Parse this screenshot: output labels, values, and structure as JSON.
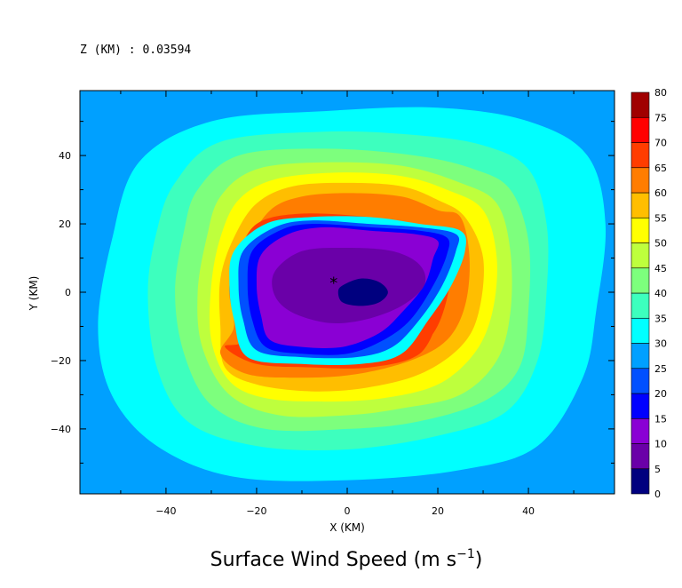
{
  "chart_data": {
    "type": "heatmap",
    "title": "Surface Wind Speed (m s",
    "title_superscript": "−1",
    "title_suffix": ")",
    "annotation": "Z (KM) : 0.03594",
    "xlabel": "X (KM)",
    "ylabel": "Y (KM)",
    "xlim": [
      -59,
      59
    ],
    "ylim": [
      -59,
      59
    ],
    "x_ticks": [
      -40,
      -20,
      0,
      20,
      40
    ],
    "y_ticks": [
      -40,
      -20,
      0,
      20,
      40
    ],
    "colorbar": {
      "levels": [
        0,
        5,
        10,
        15,
        20,
        25,
        30,
        35,
        40,
        45,
        50,
        55,
        60,
        65,
        70,
        75,
        80
      ],
      "colors": [
        "#00007f",
        "#6a00a8",
        "#8a00d4",
        "#0000ff",
        "#0050ff",
        "#00a0ff",
        "#00ffff",
        "#3dffbe",
        "#7dff7d",
        "#beff3d",
        "#ffff00",
        "#ffbe00",
        "#ff7d00",
        "#ff3d00",
        "#ff0000",
        "#a00000"
      ]
    },
    "center_marker": {
      "x": -3,
      "y": 3,
      "symbol": "*",
      "color": "#ff0000"
    },
    "contour_bands": [
      {
        "level": 25,
        "points": [
          [
            -59,
            40
          ],
          [
            -48,
            52
          ],
          [
            -30,
            56
          ],
          [
            0,
            57
          ],
          [
            30,
            56
          ],
          [
            48,
            52
          ],
          [
            59,
            43
          ],
          [
            59,
            -35
          ],
          [
            48,
            -50
          ],
          [
            30,
            -57
          ],
          [
            0,
            -58
          ],
          [
            -30,
            -57
          ],
          [
            -48,
            -50
          ],
          [
            -59,
            -35
          ]
        ]
      },
      {
        "level": 30,
        "points": [
          [
            -46,
            38
          ],
          [
            -30,
            50
          ],
          [
            -5,
            53
          ],
          [
            20,
            54
          ],
          [
            40,
            50
          ],
          [
            53,
            40
          ],
          [
            57,
            20
          ],
          [
            55,
            -5
          ],
          [
            52,
            -25
          ],
          [
            42,
            -45
          ],
          [
            25,
            -52
          ],
          [
            0,
            -55
          ],
          [
            -25,
            -54
          ],
          [
            -42,
            -45
          ],
          [
            -52,
            -30
          ],
          [
            -55,
            -10
          ],
          [
            -52,
            15
          ]
        ]
      },
      {
        "level": 35,
        "points": [
          [
            -38,
            32
          ],
          [
            -28,
            44
          ],
          [
            -5,
            47
          ],
          [
            15,
            46
          ],
          [
            30,
            43
          ],
          [
            40,
            36
          ],
          [
            44,
            20
          ],
          [
            44,
            0
          ],
          [
            42,
            -20
          ],
          [
            35,
            -35
          ],
          [
            20,
            -42
          ],
          [
            0,
            -46
          ],
          [
            -20,
            -45
          ],
          [
            -35,
            -38
          ],
          [
            -42,
            -22
          ],
          [
            -44,
            0
          ],
          [
            -42,
            18
          ]
        ]
      },
      {
        "level": 40,
        "points": [
          [
            -33,
            30
          ],
          [
            -24,
            40
          ],
          [
            -5,
            42
          ],
          [
            15,
            40
          ],
          [
            28,
            36
          ],
          [
            36,
            30
          ],
          [
            40,
            15
          ],
          [
            40,
            -5
          ],
          [
            38,
            -22
          ],
          [
            30,
            -32
          ],
          [
            15,
            -38
          ],
          [
            0,
            -40
          ],
          [
            -18,
            -40
          ],
          [
            -30,
            -33
          ],
          [
            -36,
            -18
          ],
          [
            -38,
            0
          ],
          [
            -36,
            18
          ]
        ]
      },
      {
        "level": 45,
        "points": [
          [
            -28,
            28
          ],
          [
            -20,
            36
          ],
          [
            -5,
            38
          ],
          [
            12,
            37
          ],
          [
            25,
            32
          ],
          [
            33,
            26
          ],
          [
            36,
            12
          ],
          [
            36,
            -6
          ],
          [
            33,
            -20
          ],
          [
            25,
            -30
          ],
          [
            12,
            -34
          ],
          [
            0,
            -36
          ],
          [
            -15,
            -36
          ],
          [
            -26,
            -30
          ],
          [
            -32,
            -16
          ],
          [
            -33,
            0
          ],
          [
            -31,
            16
          ]
        ]
      },
      {
        "level": 50,
        "points": [
          [
            -24,
            27
          ],
          [
            -16,
            33
          ],
          [
            -2,
            35
          ],
          [
            12,
            34
          ],
          [
            22,
            30
          ],
          [
            30,
            24
          ],
          [
            33,
            10
          ],
          [
            32,
            -6
          ],
          [
            28,
            -18
          ],
          [
            20,
            -27
          ],
          [
            8,
            -31
          ],
          [
            -5,
            -32
          ],
          [
            -18,
            -31
          ],
          [
            -26,
            -26
          ],
          [
            -30,
            -14
          ],
          [
            -30,
            2
          ],
          [
            -28,
            16
          ]
        ]
      },
      {
        "level": 55,
        "points": [
          [
            -20,
            26
          ],
          [
            -12,
            31
          ],
          [
            0,
            32
          ],
          [
            12,
            31
          ],
          [
            20,
            27
          ],
          [
            26,
            22
          ],
          [
            30,
            10
          ],
          [
            29,
            -6
          ],
          [
            25,
            -16
          ],
          [
            16,
            -24
          ],
          [
            4,
            -28
          ],
          [
            -8,
            -29
          ],
          [
            -20,
            -27
          ],
          [
            -27,
            -22
          ],
          [
            -28,
            -10
          ],
          [
            -28,
            4
          ],
          [
            -25,
            16
          ]
        ]
      },
      {
        "level": 60,
        "points": [
          [
            -17,
            24
          ],
          [
            -10,
            28
          ],
          [
            0,
            29
          ],
          [
            12,
            28
          ],
          [
            20,
            24
          ],
          [
            25,
            22
          ],
          [
            27,
            10
          ],
          [
            26,
            -4
          ],
          [
            22,
            -14
          ],
          [
            14,
            -20
          ],
          [
            2,
            -24
          ],
          [
            -10,
            -25
          ],
          [
            -22,
            -24
          ],
          [
            -28,
            -18
          ],
          [
            -25,
            -10
          ],
          [
            -26,
            2
          ],
          [
            -22,
            14
          ]
        ]
      },
      {
        "level": 65,
        "points": [
          [
            -20,
            20
          ],
          [
            -10,
            23
          ],
          [
            5,
            22
          ],
          [
            15,
            20
          ],
          [
            22,
            18
          ],
          [
            23,
            10
          ],
          [
            22,
            -2
          ],
          [
            19,
            -12
          ],
          [
            14,
            -17
          ],
          [
            20,
            -7
          ],
          [
            16,
            -18
          ],
          [
            5,
            -22
          ],
          [
            -8,
            -22
          ],
          [
            -20,
            -21
          ],
          [
            -27,
            -16
          ],
          [
            -23,
            -14
          ],
          [
            -25,
            -2
          ],
          [
            -24,
            10
          ]
        ]
      },
      {
        "level": 30,
        "points": [
          [
            -18,
            20
          ],
          [
            -8,
            22
          ],
          [
            5,
            22
          ],
          [
            16,
            20
          ],
          [
            25,
            18
          ],
          [
            26,
            12
          ],
          [
            23,
            2
          ],
          [
            18,
            -8
          ],
          [
            12,
            -18
          ],
          [
            3,
            -21
          ],
          [
            -10,
            -21
          ],
          [
            -22,
            -19
          ],
          [
            -25,
            -8
          ],
          [
            -26,
            2
          ],
          [
            -25,
            12
          ]
        ]
      },
      {
        "level": 20,
        "points": [
          [
            -16,
            19
          ],
          [
            -8,
            21
          ],
          [
            5,
            20
          ],
          [
            16,
            19
          ],
          [
            24,
            17
          ],
          [
            24,
            12
          ],
          [
            21,
            2
          ],
          [
            16,
            -8
          ],
          [
            10,
            -16
          ],
          [
            2,
            -19
          ],
          [
            -10,
            -19
          ],
          [
            -20,
            -17
          ],
          [
            -23,
            -8
          ],
          [
            -24,
            2
          ],
          [
            -23,
            12
          ]
        ]
      },
      {
        "level": 15,
        "points": [
          [
            -15,
            18
          ],
          [
            -8,
            20
          ],
          [
            5,
            19
          ],
          [
            16,
            18
          ],
          [
            22,
            16
          ],
          [
            22,
            11
          ],
          [
            19,
            2
          ],
          [
            14,
            -8
          ],
          [
            8,
            -14
          ],
          [
            0,
            -18
          ],
          [
            -10,
            -18
          ],
          [
            -18,
            -16
          ],
          [
            -21,
            -8
          ],
          [
            -22,
            2
          ],
          [
            -21,
            12
          ]
        ]
      },
      {
        "level": 10,
        "points": [
          [
            -13,
            17
          ],
          [
            -5,
            19
          ],
          [
            5,
            18
          ],
          [
            15,
            17
          ],
          [
            20,
            15
          ],
          [
            19,
            10
          ],
          [
            17,
            2
          ],
          [
            12,
            -6
          ],
          [
            7,
            -12
          ],
          [
            -1,
            -16
          ],
          [
            -10,
            -16
          ],
          [
            -17,
            -14
          ],
          [
            -19,
            -7
          ],
          [
            -20,
            2
          ],
          [
            -19,
            11
          ]
        ]
      },
      {
        "level": 5,
        "points": [
          [
            -10,
            12
          ],
          [
            0,
            13
          ],
          [
            10,
            12
          ],
          [
            16,
            8
          ],
          [
            17,
            2
          ],
          [
            12,
            -4
          ],
          [
            4,
            -8
          ],
          [
            -4,
            -9
          ],
          [
            -12,
            -6
          ],
          [
            -16,
            -1
          ],
          [
            -16,
            6
          ]
        ]
      },
      {
        "level": 0,
        "points": [
          [
            -1,
            2
          ],
          [
            3,
            4
          ],
          [
            7,
            3
          ],
          [
            9,
            0
          ],
          [
            7,
            -3
          ],
          [
            3,
            -4
          ],
          [
            -1,
            -3
          ],
          [
            -2,
            0
          ]
        ]
      }
    ]
  }
}
